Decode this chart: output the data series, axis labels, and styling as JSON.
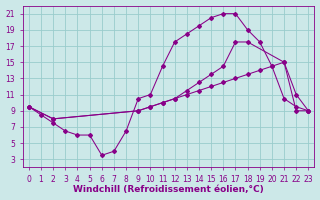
{
  "xlabel": "Windchill (Refroidissement éolien,°C)",
  "background_color": "#cce8e8",
  "grid_color": "#99cccc",
  "line_color": "#880088",
  "xlim": [
    -0.5,
    23.5
  ],
  "ylim": [
    2,
    22
  ],
  "xticks": [
    0,
    1,
    2,
    3,
    4,
    5,
    6,
    7,
    8,
    9,
    10,
    11,
    12,
    13,
    14,
    15,
    16,
    17,
    18,
    19,
    20,
    21,
    22,
    23
  ],
  "yticks": [
    3,
    5,
    7,
    9,
    11,
    13,
    15,
    17,
    19,
    21
  ],
  "line1_x": [
    0,
    1,
    2,
    3,
    4,
    5,
    6,
    7,
    8,
    9,
    10,
    11,
    12,
    13,
    14,
    15,
    16,
    17,
    18,
    19,
    20,
    21,
    22,
    23
  ],
  "line1_y": [
    9.5,
    8.5,
    7.5,
    6.5,
    6.0,
    6.0,
    3.5,
    4.0,
    6.5,
    10.5,
    11.0,
    14.5,
    17.5,
    18.5,
    19.5,
    20.5,
    21.0,
    21.0,
    19.0,
    17.5,
    14.5,
    10.5,
    9.5,
    9.0
  ],
  "line2_x": [
    0,
    2,
    9,
    10,
    11,
    12,
    13,
    14,
    15,
    16,
    17,
    18,
    21,
    22,
    23
  ],
  "line2_y": [
    9.5,
    8.0,
    9.0,
    9.5,
    10.0,
    10.5,
    11.5,
    12.5,
    13.5,
    14.5,
    17.5,
    17.5,
    15.0,
    11.0,
    9.0
  ],
  "line3_x": [
    0,
    2,
    9,
    10,
    11,
    12,
    13,
    14,
    15,
    16,
    17,
    18,
    19,
    20,
    21,
    22,
    23
  ],
  "line3_y": [
    9.5,
    8.0,
    9.0,
    9.5,
    10.0,
    10.5,
    11.0,
    11.5,
    12.0,
    12.5,
    13.0,
    13.5,
    14.0,
    14.5,
    15.0,
    9.0,
    9.0
  ],
  "font_size_label": 6.5,
  "font_size_tick": 5.5,
  "marker": "D",
  "marker_size": 2.0,
  "linewidth": 0.75
}
